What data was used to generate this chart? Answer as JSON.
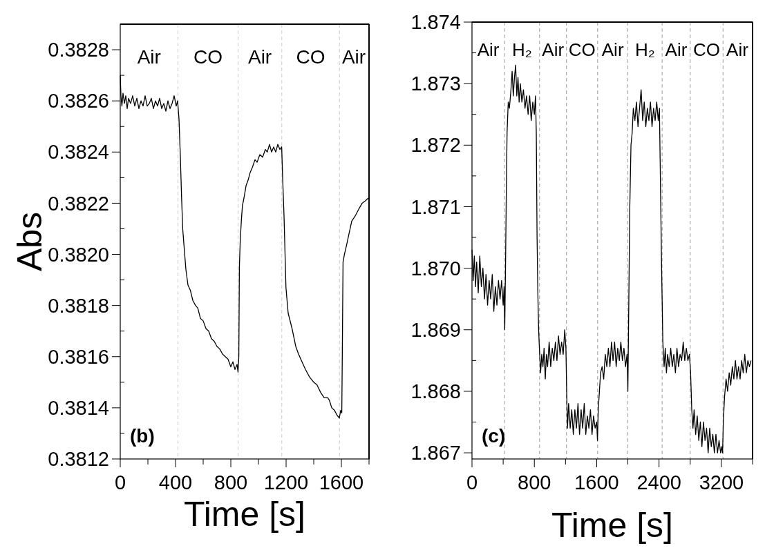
{
  "chart_data": [
    {
      "type": "line",
      "xlabel": "Time [s]",
      "ylabel": "Abs",
      "xlim": [
        0,
        1800
      ],
      "ylim": [
        0.3812,
        0.3829
      ],
      "xticks": [
        0,
        {
          "value": 200,
          "label": null
        },
        400,
        {
          "value": 600,
          "label": null
        },
        800,
        {
          "value": 1000,
          "label": null
        },
        1200,
        {
          "value": 1400,
          "label": null
        },
        1600,
        {
          "value": 1800,
          "label": null
        }
      ],
      "yticks": [
        0.3812,
        {
          "value": 0.3813,
          "label": null
        },
        0.3814,
        {
          "value": 0.3815,
          "label": null
        },
        0.3816,
        {
          "value": 0.3817,
          "label": null
        },
        0.3818,
        {
          "value": 0.3819,
          "label": null
        },
        {
          "value": 0.382,
          "label": "0.3820"
        },
        {
          "value": 0.3821,
          "label": null
        },
        0.3822,
        {
          "value": 0.3823,
          "label": null
        },
        0.3824,
        {
          "value": 0.3825,
          "label": null
        },
        0.3826,
        {
          "value": 0.3827,
          "label": null
        },
        0.3828
      ],
      "grid": false,
      "marker": "none",
      "line_style": "solid",
      "ref_lines": [
        {
          "axis": "x",
          "value": 418,
          "color": "#c8c8c8",
          "line_style": "dashed"
        },
        {
          "axis": "x",
          "value": 852,
          "color": "#c8c8c8",
          "line_style": "dashed"
        },
        {
          "axis": "x",
          "value": 1169,
          "color": "#c8c8c8",
          "line_style": "dashed"
        },
        {
          "axis": "x",
          "value": 1586,
          "color": "#c8c8c8",
          "line_style": "dashed"
        }
      ],
      "annotations": [
        "Air",
        "CO",
        "Air",
        "CO",
        "Air",
        "(b)"
      ],
      "series": [
        {
          "color": "#000000",
          "x": [
            0,
            5,
            12,
            20,
            30,
            40,
            50,
            60,
            75,
            90,
            105,
            120,
            135,
            150,
            165,
            180,
            195,
            210,
            225,
            240,
            255,
            270,
            285,
            300,
            315,
            330,
            345,
            360,
            375,
            390,
            405,
            415,
            425,
            435,
            444,
            452,
            462,
            475,
            490,
            507,
            525,
            545,
            561,
            580,
            600,
            620,
            640,
            660,
            680,
            700,
            720,
            740,
            760,
            780,
            800,
            815,
            830,
            845,
            852,
            858,
            862,
            868,
            876,
            884,
            895,
            911,
            925,
            940,
            956,
            975,
            990,
            1010,
            1030,
            1050,
            1064,
            1080,
            1095,
            1110,
            1125,
            1140,
            1155,
            1168,
            1175,
            1185,
            1199,
            1215,
            1243,
            1270,
            1290,
            1315,
            1340,
            1370,
            1400,
            1423,
            1450,
            1475,
            1500,
            1513,
            1530,
            1550,
            1570,
            1585,
            1595,
            1603,
            1608,
            1612,
            1622,
            1635,
            1655,
            1675,
            1700,
            1729,
            1750,
            1775,
            1795
          ],
          "values": [
            0.3827,
            0.38262,
            0.38258,
            0.38263,
            0.38259,
            0.38262,
            0.38257,
            0.38261,
            0.38259,
            0.38262,
            0.38258,
            0.38261,
            0.38257,
            0.3826,
            0.38258,
            0.38262,
            0.38258,
            0.38259,
            0.38261,
            0.38257,
            0.3826,
            0.38258,
            0.38261,
            0.38257,
            0.38259,
            0.38256,
            0.3826,
            0.38257,
            0.38259,
            0.38262,
            0.38258,
            0.3826,
            0.38253,
            0.38238,
            0.38222,
            0.3821,
            0.38203,
            0.38194,
            0.38188,
            0.38186,
            0.38182,
            0.3818,
            0.38179,
            0.38175,
            0.38174,
            0.38171,
            0.3817,
            0.38167,
            0.38166,
            0.38164,
            0.38163,
            0.38161,
            0.3816,
            0.38159,
            0.38156,
            0.38158,
            0.38155,
            0.38157,
            0.38154,
            0.3816,
            0.38195,
            0.38205,
            0.38213,
            0.38219,
            0.38222,
            0.38227,
            0.38229,
            0.38232,
            0.38234,
            0.38237,
            0.38236,
            0.38239,
            0.38238,
            0.38241,
            0.3824,
            0.38243,
            0.3824,
            0.38242,
            0.3824,
            0.38243,
            0.38241,
            0.38242,
            0.3823,
            0.38215,
            0.38187,
            0.38177,
            0.38171,
            0.38164,
            0.38161,
            0.38158,
            0.38155,
            0.38152,
            0.3815,
            0.38149,
            0.38146,
            0.38144,
            0.38144,
            0.38143,
            0.3814,
            0.38139,
            0.38137,
            0.38136,
            0.38139,
            0.38138,
            0.3817,
            0.38197,
            0.382,
            0.38203,
            0.38208,
            0.38213,
            0.38215,
            0.38218,
            0.3822,
            0.38221,
            0.38222
          ]
        }
      ]
    },
    {
      "type": "line",
      "xlabel": "Time [s]",
      "xlim": [
        0,
        3600
      ],
      "ylim": [
        1.8669,
        1.874
      ],
      "xticks": [
        0,
        {
          "value": 400,
          "label": null
        },
        800,
        {
          "value": 1200,
          "label": null
        },
        1600,
        {
          "value": 2000,
          "label": null
        },
        2400,
        {
          "value": 2800,
          "label": null
        },
        3200,
        {
          "value": 3600,
          "label": null
        }
      ],
      "yticks": [
        1.867,
        {
          "value": 1.8675,
          "label": null
        },
        1.868,
        {
          "value": 1.8685,
          "label": null
        },
        1.869,
        {
          "value": 1.8695,
          "label": null
        },
        {
          "value": 1.87,
          "label": "1.870"
        },
        {
          "value": 1.8705,
          "label": null
        },
        1.871,
        {
          "value": 1.8715,
          "label": null
        },
        1.872,
        {
          "value": 1.8725,
          "label": null
        },
        1.873,
        {
          "value": 1.8735,
          "label": null
        },
        1.874
      ],
      "grid": false,
      "marker": "none",
      "line_style": "solid",
      "ref_lines": [
        {
          "axis": "x",
          "value": 418,
          "color": "#9a9a9a",
          "line_style": "dashed"
        },
        {
          "axis": "x",
          "value": 867,
          "color": "#9a9a9a",
          "line_style": "dashed"
        },
        {
          "axis": "x",
          "value": 1212,
          "color": "#9a9a9a",
          "line_style": "dashed"
        },
        {
          "axis": "x",
          "value": 1612,
          "color": "#9a9a9a",
          "line_style": "dashed"
        },
        {
          "axis": "x",
          "value": 2000,
          "color": "#9a9a9a",
          "line_style": "dashed"
        },
        {
          "axis": "x",
          "value": 2440,
          "color": "#9a9a9a",
          "line_style": "dashed"
        },
        {
          "axis": "x",
          "value": 2800,
          "color": "#9a9a9a",
          "line_style": "dashed"
        },
        {
          "axis": "x",
          "value": 3221,
          "color": "#9a9a9a",
          "line_style": "dashed"
        }
      ],
      "annotations": [
        "Air",
        "H₂",
        "Air",
        "CO",
        "Air",
        "H₂",
        "Air",
        "CO",
        "Air",
        "(c)"
      ],
      "series": [
        {
          "color": "#000000",
          "x": [
            0,
            15,
            30,
            45,
            60,
            80,
            100,
            120,
            140,
            160,
            180,
            200,
            220,
            240,
            260,
            280,
            300,
            320,
            340,
            360,
            380,
            400,
            412,
            420,
            430,
            440,
            450,
            465,
            480,
            500,
            515,
            530,
            545,
            560,
            575,
            590,
            605,
            620,
            640,
            660,
            680,
            700,
            720,
            740,
            760,
            780,
            800,
            815,
            825,
            835,
            845,
            855,
            865,
            880,
            895,
            910,
            925,
            940,
            955,
            970,
            990,
            1010,
            1030,
            1050,
            1070,
            1090,
            1110,
            1130,
            1150,
            1170,
            1190,
            1205,
            1215,
            1225,
            1240,
            1260,
            1280,
            1300,
            1320,
            1340,
            1360,
            1380,
            1400,
            1420,
            1440,
            1460,
            1480,
            1500,
            1520,
            1540,
            1560,
            1580,
            1600,
            1610,
            1620,
            1635,
            1650,
            1670,
            1690,
            1710,
            1730,
            1750,
            1770,
            1790,
            1810,
            1830,
            1850,
            1870,
            1890,
            1910,
            1930,
            1950,
            1970,
            1990,
            2000,
            2010,
            2025,
            2040,
            2055,
            2070,
            2090,
            2110,
            2130,
            2150,
            2170,
            2190,
            2210,
            2230,
            2250,
            2270,
            2290,
            2310,
            2330,
            2350,
            2370,
            2390,
            2405,
            2420,
            2433,
            2449,
            2465,
            2480,
            2495,
            2510,
            2530,
            2550,
            2570,
            2590,
            2610,
            2630,
            2650,
            2670,
            2690,
            2710,
            2730,
            2750,
            2770,
            2790,
            2805,
            2820,
            2835,
            2850,
            2870,
            2890,
            2910,
            2930,
            2950,
            2970,
            2990,
            3010,
            3030,
            3050,
            3070,
            3090,
            3110,
            3130,
            3150,
            3170,
            3190,
            3205,
            3215,
            3225,
            3240,
            3260,
            3280,
            3300,
            3320,
            3340,
            3360,
            3380,
            3400,
            3420,
            3440,
            3460,
            3480,
            3500,
            3520,
            3540,
            3560,
            3580
          ],
          "values": [
            1.8703,
            1.8698,
            1.8702,
            1.8697,
            1.8701,
            1.8696,
            1.8702,
            1.8697,
            1.87,
            1.8695,
            1.8699,
            1.8694,
            1.8698,
            1.8695,
            1.8699,
            1.8693,
            1.8697,
            1.8694,
            1.8698,
            1.8695,
            1.8698,
            1.8694,
            1.8697,
            1.869,
            1.87,
            1.8712,
            1.8722,
            1.8727,
            1.8726,
            1.8729,
            1.8732,
            1.8728,
            1.8731,
            1.8733,
            1.8728,
            1.8731,
            1.8727,
            1.873,
            1.8727,
            1.8729,
            1.8726,
            1.8728,
            1.8725,
            1.8728,
            1.8724,
            1.8727,
            1.8725,
            1.8728,
            1.8722,
            1.8705,
            1.8696,
            1.869,
            1.8687,
            1.8683,
            1.8686,
            1.8684,
            1.8687,
            1.8682,
            1.8686,
            1.8684,
            1.8688,
            1.8684,
            1.8687,
            1.8685,
            1.8688,
            1.8685,
            1.8689,
            1.8686,
            1.8688,
            1.8686,
            1.869,
            1.8687,
            1.868,
            1.8674,
            1.8678,
            1.8674,
            1.8677,
            1.8673,
            1.8677,
            1.8674,
            1.8678,
            1.8673,
            1.8677,
            1.8674,
            1.8678,
            1.8673,
            1.8676,
            1.8674,
            1.8677,
            1.8673,
            1.8676,
            1.8674,
            1.8675,
            1.8672,
            1.8677,
            1.868,
            1.8683,
            1.8684,
            1.8682,
            1.8686,
            1.8684,
            1.8687,
            1.8684,
            1.8688,
            1.8685,
            1.8688,
            1.8684,
            1.8687,
            1.8685,
            1.8688,
            1.8685,
            1.8687,
            1.8684,
            1.8686,
            1.868,
            1.8692,
            1.871,
            1.872,
            1.8722,
            1.8726,
            1.8724,
            1.8727,
            1.8723,
            1.8726,
            1.8729,
            1.8724,
            1.8727,
            1.8723,
            1.8726,
            1.8724,
            1.8727,
            1.8723,
            1.8726,
            1.8724,
            1.8727,
            1.8724,
            1.8726,
            1.8712,
            1.87,
            1.8688,
            1.8684,
            1.8687,
            1.8683,
            1.8686,
            1.8684,
            1.8687,
            1.8684,
            1.8686,
            1.8683,
            1.8687,
            1.8684,
            1.8686,
            1.8685,
            1.8688,
            1.8685,
            1.8687,
            1.8685,
            1.8686,
            1.8683,
            1.8677,
            1.8674,
            1.8677,
            1.8673,
            1.8676,
            1.8672,
            1.8675,
            1.8671,
            1.8675,
            1.8672,
            1.8674,
            1.867,
            1.8674,
            1.8671,
            1.8673,
            1.867,
            1.8673,
            1.867,
            1.8672,
            1.867,
            1.8671,
            1.867,
            1.8675,
            1.8679,
            1.8682,
            1.868,
            1.8683,
            1.8681,
            1.8684,
            1.8682,
            1.8685,
            1.8682,
            1.8684,
            1.8682,
            1.8685,
            1.8683,
            1.8686,
            1.8683,
            1.8685,
            1.8684,
            1.8685
          ]
        }
      ]
    }
  ]
}
